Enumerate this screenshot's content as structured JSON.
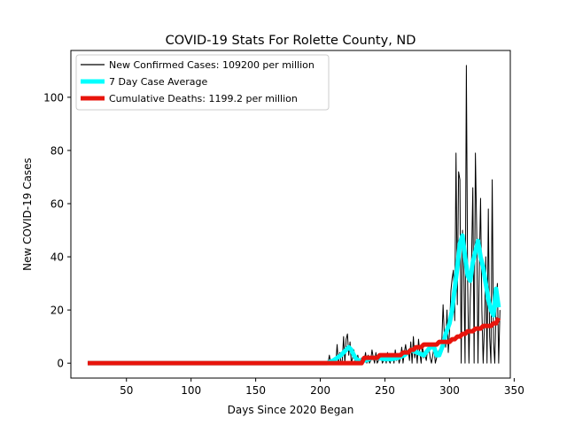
{
  "chart_data": {
    "type": "line",
    "title": "COVID-19 Stats For Rolette County, ND",
    "xlabel": "Days Since 2020 Began",
    "ylabel": "New COVID-19 Cases",
    "xlim": [
      7,
      347
    ],
    "ylim": [
      -5.6,
      117.6
    ],
    "xticks": [
      50,
      100,
      150,
      200,
      250,
      300,
      350
    ],
    "yticks": [
      0,
      20,
      40,
      60,
      80,
      100
    ],
    "grid": false,
    "legend_position": "top-left",
    "series": [
      {
        "name": "New Confirmed Cases: 109200 per million",
        "color": "#000000",
        "style": "thin",
        "x": [
          20,
          206,
          207,
          208,
          209,
          210,
          211,
          212,
          213,
          214,
          215,
          216,
          217,
          218,
          219,
          220,
          221,
          222,
          223,
          224,
          225,
          226,
          227,
          228,
          229,
          230,
          231,
          232,
          233,
          234,
          235,
          236,
          237,
          238,
          239,
          240,
          241,
          242,
          243,
          244,
          245,
          246,
          247,
          248,
          249,
          250,
          251,
          252,
          253,
          254,
          255,
          256,
          257,
          258,
          259,
          260,
          261,
          262,
          263,
          264,
          265,
          266,
          267,
          268,
          269,
          270,
          271,
          272,
          273,
          274,
          275,
          276,
          277,
          278,
          279,
          280,
          281,
          282,
          283,
          284,
          285,
          286,
          287,
          288,
          289,
          290,
          291,
          292,
          293,
          294,
          295,
          296,
          297,
          298,
          299,
          300,
          301,
          302,
          303,
          304,
          305,
          306,
          307,
          308,
          309,
          310,
          311,
          312,
          313,
          314,
          315,
          316,
          317,
          318,
          319,
          320,
          321,
          322,
          323,
          324,
          325,
          326,
          327,
          328,
          329,
          330,
          331,
          332,
          333,
          334,
          335,
          336,
          337,
          338,
          339
        ],
        "y": [
          0,
          0,
          3,
          0,
          1,
          0,
          2,
          0,
          7,
          0,
          4,
          0,
          1,
          10,
          0,
          9,
          11,
          3,
          8,
          0,
          2,
          5,
          0,
          1,
          3,
          0,
          0,
          2,
          0,
          1,
          4,
          0,
          3,
          0,
          1,
          5,
          2,
          0,
          4,
          0,
          1,
          2,
          3,
          0,
          1,
          3,
          0,
          4,
          1,
          0,
          2,
          3,
          0,
          5,
          1,
          3,
          0,
          2,
          6,
          0,
          4,
          7,
          3,
          5,
          1,
          8,
          0,
          10,
          2,
          6,
          0,
          9,
          4,
          0,
          7,
          2,
          3,
          1,
          5,
          6,
          2,
          0,
          3,
          6,
          0,
          2,
          4,
          5,
          3,
          8,
          22,
          10,
          6,
          20,
          4,
          12,
          27,
          32,
          35,
          16,
          79,
          22,
          72,
          69,
          0,
          50,
          35,
          0,
          112,
          30,
          0,
          24,
          38,
          66,
          0,
          79,
          50,
          0,
          36,
          62,
          20,
          0,
          14,
          40,
          0,
          58,
          10,
          0,
          69,
          8,
          0,
          22,
          30,
          0,
          20
        ]
      },
      {
        "name": "7 Day Case Average",
        "color": "#00ffff",
        "style": "thick",
        "x": [
          20,
          200,
          205,
          210,
          213,
          216,
          218,
          220,
          222,
          224,
          226,
          228,
          230,
          235,
          240,
          245,
          250,
          255,
          260,
          265,
          270,
          275,
          280,
          285,
          288,
          290,
          292,
          295,
          297,
          300,
          302,
          304,
          306,
          308,
          310,
          312,
          314,
          316,
          318,
          320,
          322,
          324,
          326,
          328,
          330,
          332,
          334,
          336,
          338
        ],
        "y": [
          0,
          0,
          0,
          1,
          2,
          3,
          4,
          5,
          6,
          5,
          3,
          1.5,
          1,
          1,
          2,
          2,
          1.5,
          1.5,
          2,
          3,
          5,
          4,
          3,
          6,
          6,
          3,
          3,
          7,
          11,
          15,
          20,
          28,
          36,
          45,
          48,
          40,
          33,
          31,
          38,
          42,
          46,
          40,
          36,
          30,
          24,
          20,
          18,
          28,
          21
        ]
      },
      {
        "name": "Cumulative Deaths: 1199.2 per million",
        "color": "#e8140c",
        "style": "thick",
        "x": [
          20,
          232,
          234,
          244,
          246,
          262,
          264,
          268,
          270,
          272,
          274,
          278,
          280,
          290,
          292,
          300,
          302,
          304,
          306,
          308,
          310,
          312,
          314,
          318,
          320,
          324,
          326,
          332,
          334,
          336,
          338
        ],
        "y": [
          0,
          0,
          2,
          2,
          3,
          3,
          4,
          4,
          5,
          5,
          6,
          6,
          7,
          7,
          8,
          8,
          9,
          9,
          10,
          10,
          11,
          11,
          12,
          12,
          13,
          13,
          14,
          14,
          15,
          15,
          17
        ]
      }
    ]
  }
}
